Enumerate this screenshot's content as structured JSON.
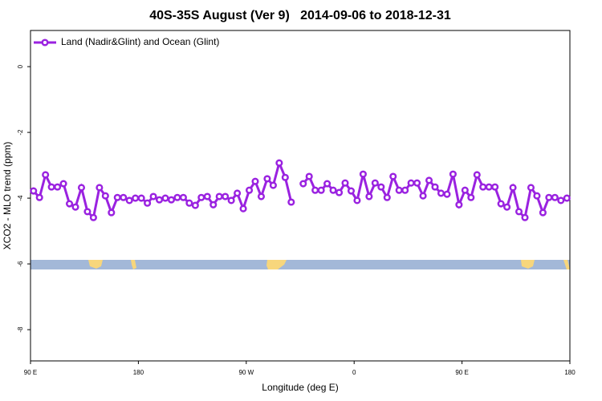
{
  "chart_data": {
    "type": "line",
    "title": "40S-35S August (Ver 9)   2014-09-06 to 2018-12-31",
    "xlabel": "Longitude (deg E)",
    "ylabel": "XCO2 - MLO trend (ppm)",
    "xlim": [
      90,
      540
    ],
    "ylim": [
      -8.95,
      1.1
    ],
    "xticks": [
      {
        "value": 90,
        "label": "90 E"
      },
      {
        "value": 180,
        "label": "180"
      },
      {
        "value": 270,
        "label": "90 W"
      },
      {
        "value": 360,
        "label": "0"
      },
      {
        "value": 450,
        "label": "90 E"
      },
      {
        "value": 540,
        "label": "180"
      }
    ],
    "yticks": [
      0,
      -2,
      -4,
      -6,
      -8
    ],
    "legend": "top-left",
    "x": [
      92.5,
      97.5,
      102.5,
      107.5,
      112.5,
      117.5,
      122.5,
      127.5,
      132.5,
      137.5,
      142.5,
      147.5,
      152.5,
      157.5,
      162.5,
      167.5,
      172.5,
      177.5,
      182.5,
      187.5,
      192.5,
      197.5,
      202.5,
      207.5,
      212.5,
      217.5,
      222.5,
      227.5,
      232.5,
      237.5,
      242.5,
      247.5,
      252.5,
      257.5,
      262.5,
      267.5,
      272.5,
      277.5,
      282.5,
      287.5,
      292.5,
      297.5,
      302.5,
      307.5,
      312.5,
      317.5,
      322.5,
      327.5,
      332.5,
      337.5,
      342.5,
      347.5,
      352.5,
      357.5,
      362.5,
      367.5,
      372.5,
      377.5,
      382.5,
      387.5,
      392.5,
      397.5,
      402.5,
      407.5,
      412.5,
      417.5,
      422.5,
      427.5,
      432.5,
      437.5,
      442.5,
      447.5,
      452.5,
      457.5,
      462.5,
      467.5,
      472.5,
      477.5,
      482.5,
      487.5,
      492.5,
      497.5,
      502.5,
      507.5,
      512.5,
      517.5,
      522.5,
      527.5,
      532.5,
      537.5
    ],
    "series": [
      {
        "name": "Land (Nadir&Glint) and Ocean (Glint)",
        "color": "#9a22e0",
        "values": [
          -3.78,
          -3.98,
          -3.29,
          -3.66,
          -3.66,
          -3.56,
          -4.17,
          -4.27,
          -3.68,
          -4.41,
          -4.59,
          -3.68,
          -3.93,
          -4.44,
          -3.98,
          -3.98,
          -4.07,
          -4.0,
          -4.0,
          -4.15,
          -3.95,
          -4.05,
          -4.0,
          -4.05,
          -3.98,
          -3.98,
          -4.15,
          -4.22,
          -3.98,
          -3.95,
          -4.2,
          -3.95,
          -3.95,
          -4.07,
          -3.85,
          -4.32,
          -3.76,
          -3.49,
          -3.95,
          -3.41,
          -3.61,
          -2.93,
          -3.37,
          -4.12,
          null,
          -3.56,
          -3.34,
          -3.76,
          -3.76,
          -3.56,
          -3.76,
          -3.83,
          -3.54,
          -3.78,
          -4.07,
          -3.27,
          -3.95,
          -3.54,
          -3.66,
          -3.98,
          -3.34,
          -3.76,
          -3.76,
          -3.54,
          -3.54,
          -3.93,
          -3.46,
          -3.66,
          -3.85,
          -3.88,
          -3.27,
          -4.2,
          -3.76,
          -3.98,
          -3.29,
          -3.66,
          -3.66,
          -3.66,
          -4.17,
          -4.27,
          -3.68,
          -4.41,
          -4.59,
          -3.68,
          -3.93,
          -4.44,
          -3.98,
          -3.98,
          -4.07,
          -4.0
        ]
      }
    ]
  }
}
